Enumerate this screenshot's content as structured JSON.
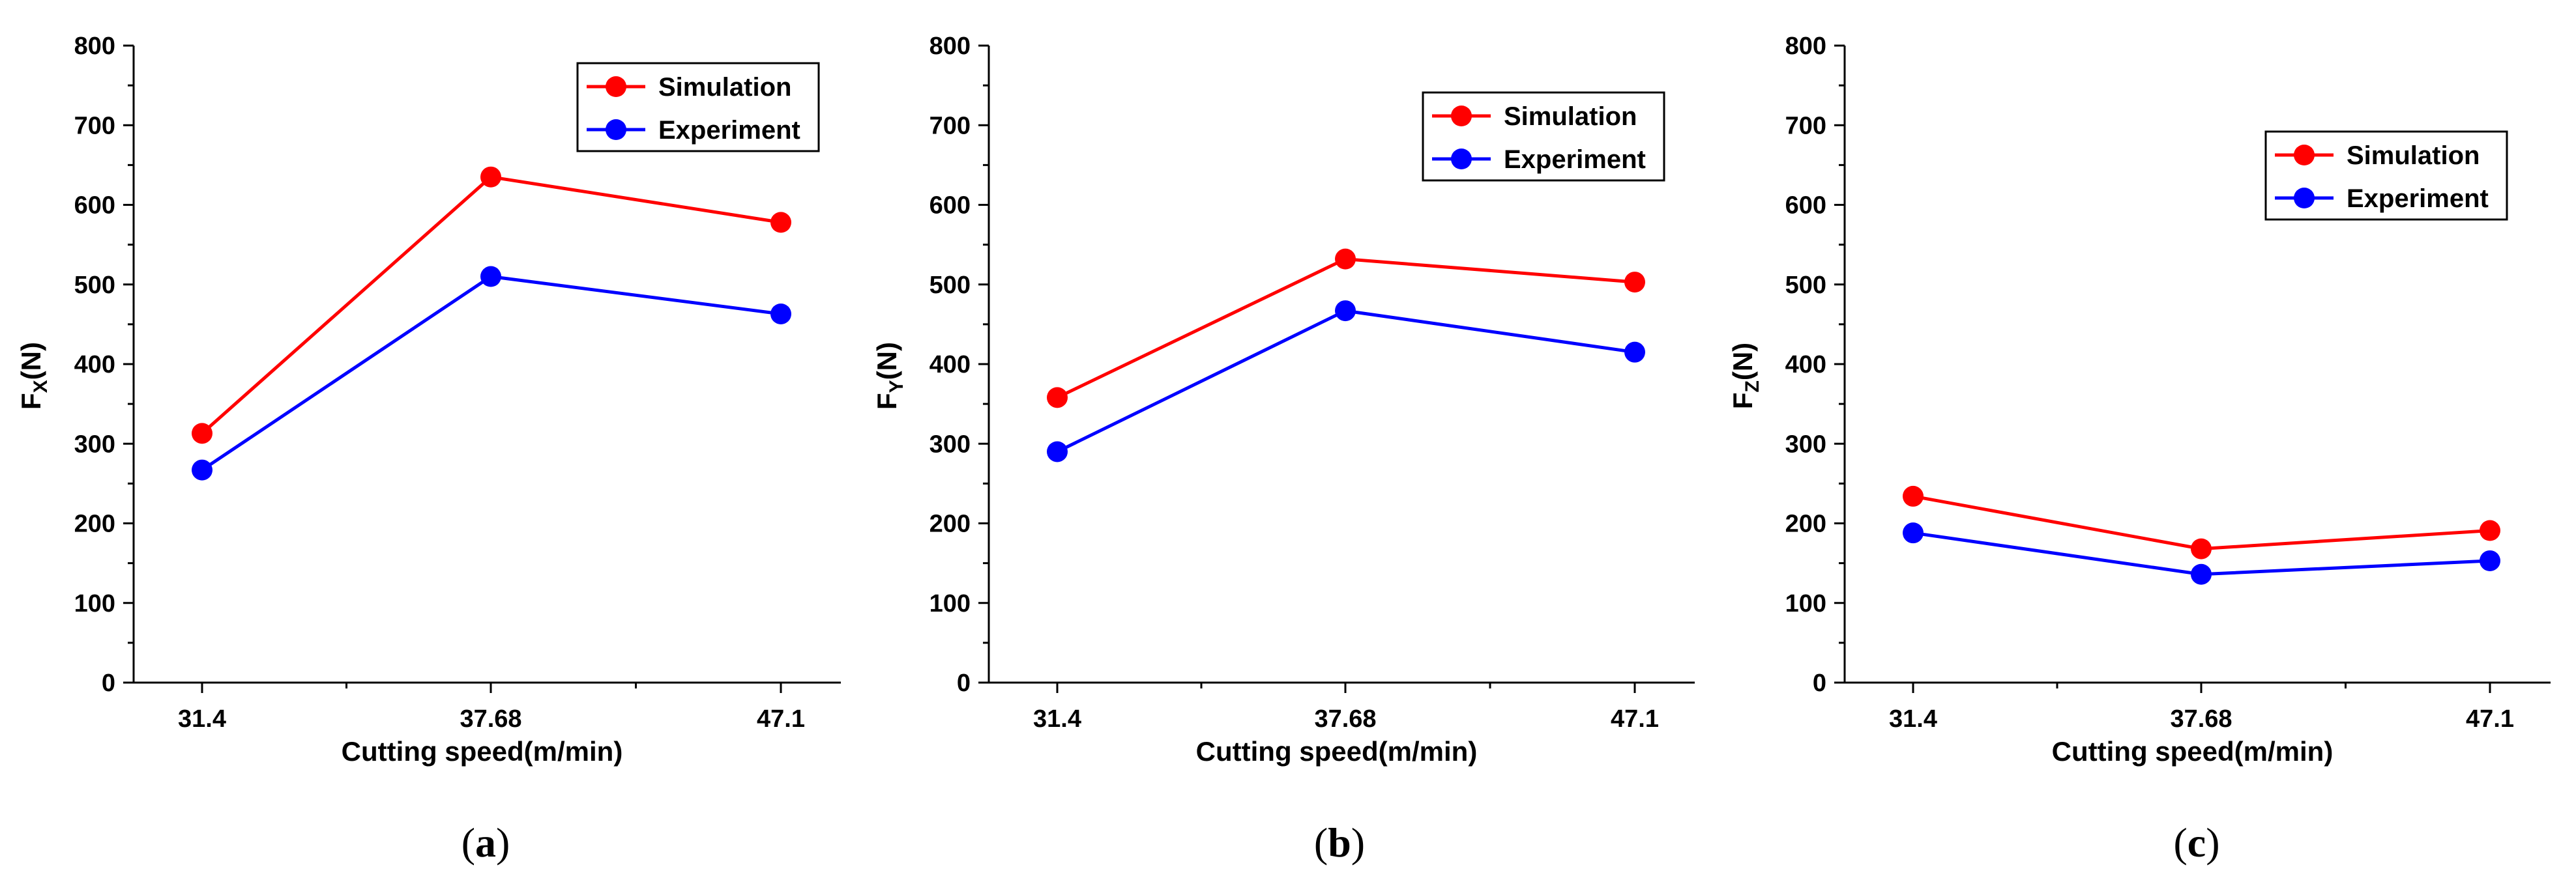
{
  "chart_data": [
    {
      "type": "line",
      "panel": "a",
      "caption_letter": "a",
      "categories": [
        "31.4",
        "37.68",
        "47.1"
      ],
      "series": [
        {
          "name": "Simulation",
          "color": "#ff0000",
          "values": [
            313,
            635,
            578
          ]
        },
        {
          "name": "Experiment",
          "color": "#0000ff",
          "values": [
            267,
            510,
            463
          ]
        }
      ],
      "xlabel": "Cutting speed(m/min)",
      "ylabel_main": "F",
      "ylabel_sub": "X",
      "ylabel_unit": "(N)",
      "ylim": [
        0,
        800
      ],
      "yticks": [
        0,
        100,
        200,
        300,
        400,
        500,
        600,
        700,
        800
      ],
      "legend": "top-right"
    },
    {
      "type": "line",
      "panel": "b",
      "caption_letter": "b",
      "categories": [
        "31.4",
        "37.68",
        "47.1"
      ],
      "series": [
        {
          "name": "Simulation",
          "color": "#ff0000",
          "values": [
            358,
            532,
            503
          ]
        },
        {
          "name": "Experiment",
          "color": "#0000ff",
          "values": [
            290,
            467,
            415
          ]
        }
      ],
      "xlabel": "Cutting speed(m/min)",
      "ylabel_main": "F",
      "ylabel_sub": "Y",
      "ylabel_unit": "(N)",
      "ylim": [
        0,
        800
      ],
      "yticks": [
        0,
        100,
        200,
        300,
        400,
        500,
        600,
        700,
        800
      ],
      "legend": "top-right"
    },
    {
      "type": "line",
      "panel": "c",
      "caption_letter": "c",
      "categories": [
        "31.4",
        "37.68",
        "47.1"
      ],
      "series": [
        {
          "name": "Simulation",
          "color": "#ff0000",
          "values": [
            234,
            168,
            191
          ]
        },
        {
          "name": "Experiment",
          "color": "#0000ff",
          "values": [
            188,
            136,
            153
          ]
        }
      ],
      "xlabel": "Cutting speed(m/min)",
      "ylabel_main": "F",
      "ylabel_sub": "Z",
      "ylabel_unit": "(N)",
      "ylim": [
        0,
        800
      ],
      "yticks": [
        0,
        100,
        200,
        300,
        400,
        500,
        600,
        700,
        800
      ],
      "legend": "top-right"
    }
  ]
}
